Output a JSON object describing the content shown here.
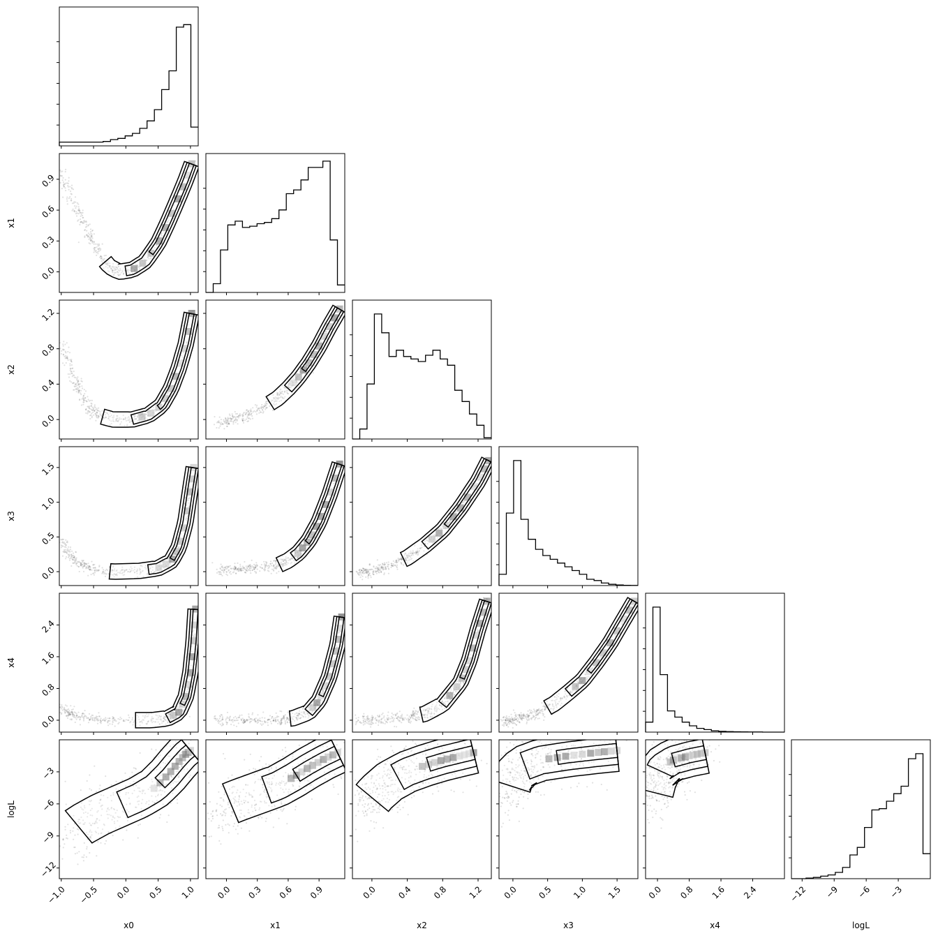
{
  "chart_data": {
    "type": "corner",
    "variables": [
      "x0",
      "x1",
      "x2",
      "x3",
      "x4",
      "logL"
    ],
    "axis_labels": [
      "x0",
      "x1",
      "x2",
      "x3",
      "x4",
      "logL"
    ],
    "ranges": {
      "x0": [
        -1.03,
        1.12
      ],
      "x1": [
        -0.2,
        1.15
      ],
      "x2": [
        -0.22,
        1.35
      ],
      "x3": [
        -0.2,
        1.8
      ],
      "x4": [
        -0.3,
        3.2
      ],
      "logL": [
        -13.0,
        0.0
      ]
    },
    "ticks": {
      "x0": [
        -1.0,
        -0.5,
        0.0,
        0.5,
        1.0
      ],
      "x1": [
        0.0,
        0.3,
        0.6,
        0.9
      ],
      "x2": [
        0.0,
        0.4,
        0.8,
        1.2
      ],
      "x3": [
        0.0,
        0.5,
        1.0,
        1.5
      ],
      "x4": [
        0.0,
        0.8,
        1.6,
        2.4
      ],
      "logL": [
        -12,
        -9,
        -6,
        -3
      ]
    },
    "tick_labels": {
      "x0": [
        "−1.0",
        "−0.5",
        "0.0",
        "0.5",
        "1.0"
      ],
      "x1": [
        "0.0",
        "0.3",
        "0.6",
        "0.9"
      ],
      "x2": [
        "0.0",
        "0.4",
        "0.8",
        "1.2"
      ],
      "x3": [
        "0.0",
        "0.5",
        "1.0",
        "1.5"
      ],
      "x4": [
        "0.0",
        "0.8",
        "1.6",
        "2.4"
      ],
      "logL": [
        "−12",
        "−9",
        "−6",
        "−3"
      ]
    },
    "histograms": {
      "x0": [
        0.03,
        0.03,
        0.03,
        0.03,
        0.03,
        0.03,
        0.035,
        0.05,
        0.06,
        0.08,
        0.1,
        0.14,
        0.2,
        0.29,
        0.45,
        0.6,
        0.95,
        0.97,
        0.15
      ],
      "x1": [
        0.0,
        0.07,
        0.34,
        0.54,
        0.57,
        0.52,
        0.53,
        0.55,
        0.56,
        0.59,
        0.66,
        0.79,
        0.82,
        0.9,
        1.0,
        1.0,
        1.05,
        0.42,
        0.06
      ],
      "x2": [
        0.0,
        0.08,
        0.44,
        1.0,
        0.85,
        0.66,
        0.71,
        0.66,
        0.64,
        0.62,
        0.67,
        0.71,
        0.64,
        0.59,
        0.39,
        0.3,
        0.2,
        0.11,
        0.01
      ],
      "x3": [
        0.09,
        0.58,
        1.0,
        0.53,
        0.37,
        0.29,
        0.24,
        0.21,
        0.18,
        0.15,
        0.12,
        0.09,
        0.05,
        0.04,
        0.02,
        0.01,
        0.005,
        0.002,
        0.001
      ],
      "x4": [
        0.08,
        1.0,
        0.46,
        0.17,
        0.12,
        0.08,
        0.05,
        0.03,
        0.02,
        0.01,
        0.006,
        0.004,
        0.003,
        0.002,
        0.001,
        0.001,
        0.0,
        0.0,
        0.0
      ],
      "logL": [
        0.0,
        0.0,
        0.005,
        0.01,
        0.02,
        0.03,
        0.05,
        0.09,
        0.19,
        0.25,
        0.41,
        0.55,
        0.56,
        0.62,
        0.68,
        0.74,
        0.96,
        1.0,
        0.2
      ]
    },
    "pairs": [
      {
        "x": "x0",
        "y": "x1",
        "curve": [
          [
            -1.0,
            0.98
          ],
          [
            -0.85,
            0.72
          ],
          [
            -0.7,
            0.52
          ],
          [
            -0.55,
            0.33
          ],
          [
            -0.4,
            0.16
          ],
          [
            -0.25,
            0.05
          ],
          [
            -0.1,
            0.0
          ],
          [
            0.1,
            0.02
          ],
          [
            0.3,
            0.1
          ],
          [
            0.5,
            0.28
          ],
          [
            0.65,
            0.48
          ],
          [
            0.8,
            0.7
          ],
          [
            0.92,
            0.88
          ],
          [
            1.02,
            1.05
          ]
        ]
      },
      {
        "x": "x0",
        "y": "x2",
        "curve": [
          [
            -1.0,
            0.9
          ],
          [
            -0.85,
            0.55
          ],
          [
            -0.7,
            0.3
          ],
          [
            -0.55,
            0.12
          ],
          [
            -0.4,
            0.04
          ],
          [
            -0.2,
            0.0
          ],
          [
            0.1,
            0.0
          ],
          [
            0.35,
            0.05
          ],
          [
            0.55,
            0.16
          ],
          [
            0.7,
            0.35
          ],
          [
            0.82,
            0.58
          ],
          [
            0.93,
            0.86
          ],
          [
            1.02,
            1.2
          ]
        ]
      },
      {
        "x": "x0",
        "y": "x3",
        "curve": [
          [
            -1.0,
            0.45
          ],
          [
            -0.85,
            0.22
          ],
          [
            -0.7,
            0.1
          ],
          [
            -0.5,
            0.03
          ],
          [
            -0.2,
            0.0
          ],
          [
            0.2,
            0.01
          ],
          [
            0.5,
            0.05
          ],
          [
            0.7,
            0.15
          ],
          [
            0.82,
            0.35
          ],
          [
            0.92,
            0.7
          ],
          [
            1.0,
            1.2
          ],
          [
            1.05,
            1.5
          ]
        ]
      },
      {
        "x": "x0",
        "y": "x4",
        "curve": [
          [
            -1.0,
            0.3
          ],
          [
            -0.8,
            0.1
          ],
          [
            -0.5,
            0.02
          ],
          [
            -0.1,
            0.0
          ],
          [
            0.4,
            0.0
          ],
          [
            0.65,
            0.05
          ],
          [
            0.82,
            0.2
          ],
          [
            0.93,
            0.6
          ],
          [
            1.0,
            1.2
          ],
          [
            1.05,
            2.0
          ],
          [
            1.08,
            2.8
          ]
        ]
      },
      {
        "x": "x0",
        "y": "logL",
        "curve": [
          [
            -1.0,
            -9.5
          ],
          [
            -0.7,
            -8.0
          ],
          [
            -0.4,
            -7.0
          ],
          [
            -0.1,
            -6.2
          ],
          [
            0.2,
            -5.4
          ],
          [
            0.45,
            -4.5
          ],
          [
            0.65,
            -3.3
          ],
          [
            0.8,
            -2.2
          ],
          [
            0.92,
            -1.4
          ],
          [
            1.0,
            -1.0
          ]
        ]
      },
      {
        "x": "x1",
        "y": "x2",
        "curve": [
          [
            -0.1,
            -0.05
          ],
          [
            0.05,
            0.0
          ],
          [
            0.2,
            0.05
          ],
          [
            0.35,
            0.13
          ],
          [
            0.5,
            0.24
          ],
          [
            0.6,
            0.35
          ],
          [
            0.7,
            0.48
          ],
          [
            0.8,
            0.64
          ],
          [
            0.9,
            0.83
          ],
          [
            1.0,
            1.05
          ],
          [
            1.1,
            1.25
          ]
        ]
      },
      {
        "x": "x1",
        "y": "x3",
        "curve": [
          [
            -0.1,
            0.02
          ],
          [
            0.1,
            0.03
          ],
          [
            0.3,
            0.05
          ],
          [
            0.5,
            0.09
          ],
          [
            0.6,
            0.16
          ],
          [
            0.7,
            0.27
          ],
          [
            0.8,
            0.45
          ],
          [
            0.9,
            0.72
          ],
          [
            1.0,
            1.1
          ],
          [
            1.1,
            1.55
          ]
        ]
      },
      {
        "x": "x1",
        "y": "x4",
        "curve": [
          [
            -0.1,
            0.0
          ],
          [
            0.2,
            0.0
          ],
          [
            0.5,
            0.01
          ],
          [
            0.65,
            0.05
          ],
          [
            0.8,
            0.2
          ],
          [
            0.9,
            0.5
          ],
          [
            1.0,
            1.1
          ],
          [
            1.08,
            1.9
          ],
          [
            1.12,
            2.6
          ]
        ]
      },
      {
        "x": "x1",
        "y": "logL",
        "curve": [
          [
            -0.1,
            -6.5
          ],
          [
            0.1,
            -5.7
          ],
          [
            0.3,
            -5.0
          ],
          [
            0.5,
            -4.3
          ],
          [
            0.65,
            -3.5
          ],
          [
            0.8,
            -2.6
          ],
          [
            0.95,
            -1.8
          ],
          [
            1.08,
            -1.2
          ]
        ]
      },
      {
        "x": "x2",
        "y": "x3",
        "curve": [
          [
            -0.15,
            -0.02
          ],
          [
            0.0,
            0.02
          ],
          [
            0.2,
            0.08
          ],
          [
            0.4,
            0.2
          ],
          [
            0.6,
            0.38
          ],
          [
            0.8,
            0.6
          ],
          [
            1.0,
            0.92
          ],
          [
            1.2,
            1.3
          ],
          [
            1.32,
            1.6
          ]
        ]
      },
      {
        "x": "x2",
        "y": "x4",
        "curve": [
          [
            -0.15,
            0.0
          ],
          [
            0.1,
            0.01
          ],
          [
            0.4,
            0.06
          ],
          [
            0.6,
            0.16
          ],
          [
            0.8,
            0.4
          ],
          [
            1.0,
            0.95
          ],
          [
            1.1,
            1.5
          ],
          [
            1.2,
            2.3
          ],
          [
            1.3,
            3.0
          ]
        ]
      },
      {
        "x": "x2",
        "y": "logL",
        "curve": [
          [
            -0.1,
            -6.5
          ],
          [
            0.05,
            -5.0
          ],
          [
            0.2,
            -3.9
          ],
          [
            0.4,
            -3.0
          ],
          [
            0.6,
            -2.4
          ],
          [
            0.8,
            -1.9
          ],
          [
            1.0,
            -1.5
          ],
          [
            1.15,
            -1.2
          ]
        ]
      },
      {
        "x": "x3",
        "y": "x4",
        "curve": [
          [
            -0.15,
            -0.05
          ],
          [
            0.0,
            0.0
          ],
          [
            0.2,
            0.08
          ],
          [
            0.4,
            0.22
          ],
          [
            0.6,
            0.42
          ],
          [
            0.8,
            0.7
          ],
          [
            1.0,
            1.0
          ],
          [
            1.2,
            1.45
          ],
          [
            1.4,
            1.95
          ],
          [
            1.6,
            2.55
          ],
          [
            1.75,
            3.0
          ]
        ]
      },
      {
        "x": "x3",
        "y": "logL",
        "curve": [
          [
            -0.1,
            -5.5
          ],
          [
            0.0,
            -3.5
          ],
          [
            0.15,
            -2.5
          ],
          [
            0.4,
            -1.9
          ],
          [
            0.8,
            -1.5
          ],
          [
            1.2,
            -1.2
          ],
          [
            1.5,
            -1.0
          ]
        ]
      },
      {
        "x": "x4",
        "y": "logL",
        "curve": [
          [
            -0.2,
            -6.0
          ],
          [
            -0.05,
            -3.8
          ],
          [
            0.1,
            -2.6
          ],
          [
            0.4,
            -1.9
          ],
          [
            0.8,
            -1.5
          ],
          [
            1.2,
            -1.2
          ]
        ]
      }
    ]
  }
}
